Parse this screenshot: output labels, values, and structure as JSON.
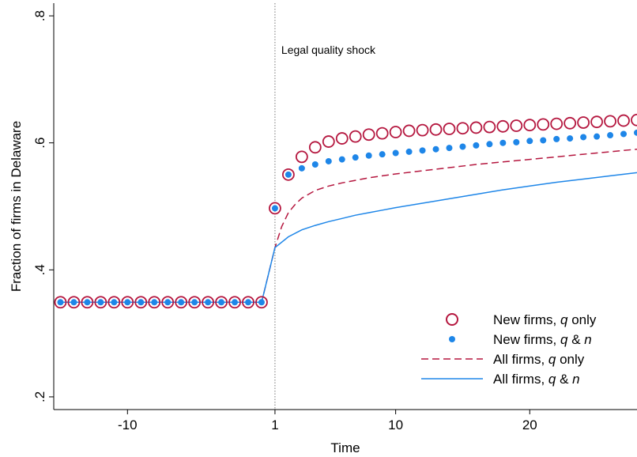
{
  "chart_data": {
    "type": "scatter",
    "xlabel": "Time",
    "ylabel": "Fraction of firms in Delaware",
    "xlim": [
      -15.5,
      28
    ],
    "ylim": [
      0.18,
      0.82
    ],
    "x_ticks": [
      -10,
      1,
      10,
      20
    ],
    "x_tick_labels": [
      "-10",
      "1",
      "10",
      "20"
    ],
    "y_ticks": [
      0.2,
      0.4,
      0.6,
      0.8
    ],
    "y_tick_labels": [
      ".2",
      ".4",
      ".6",
      ".8"
    ],
    "grid": false,
    "legend_position": "bottom-right",
    "annotation": {
      "text": "Legal quality shock",
      "x": 1
    },
    "colors": {
      "red": "#b5173f",
      "blue": "#1e86e8",
      "shock_line": "#777777"
    },
    "series": [
      {
        "name_prefix": "New firms, ",
        "name_q": "q",
        "name_suffix": " only",
        "style": "hollow-circle",
        "color": "#b5173f",
        "x": [
          -15,
          -14,
          -13,
          -12,
          -11,
          -10,
          -9,
          -8,
          -7,
          -6,
          -5,
          -4,
          -3,
          -2,
          -1,
          0,
          1,
          2,
          3,
          4,
          5,
          6,
          7,
          8,
          9,
          10,
          11,
          12,
          13,
          14,
          15,
          16,
          17,
          18,
          19,
          20,
          21,
          22,
          23,
          24,
          25,
          26,
          27,
          28
        ],
        "values": [
          0.349,
          0.349,
          0.349,
          0.349,
          0.349,
          0.349,
          0.349,
          0.349,
          0.349,
          0.349,
          0.349,
          0.349,
          0.349,
          0.349,
          0.349,
          0.349,
          0.497,
          0.55,
          0.578,
          0.593,
          0.602,
          0.607,
          0.61,
          0.613,
          0.615,
          0.617,
          0.619,
          0.62,
          0.621,
          0.622,
          0.623,
          0.624,
          0.625,
          0.626,
          0.627,
          0.628,
          0.629,
          0.63,
          0.631,
          0.632,
          0.633,
          0.634,
          0.635,
          0.636
        ]
      },
      {
        "name_prefix": "New firms, ",
        "name_q": "q",
        "name_mid": " & ",
        "name_n": "n",
        "style": "dot",
        "color": "#1e86e8",
        "x": [
          -15,
          -14,
          -13,
          -12,
          -11,
          -10,
          -9,
          -8,
          -7,
          -6,
          -5,
          -4,
          -3,
          -2,
          -1,
          0,
          1,
          2,
          3,
          4,
          5,
          6,
          7,
          8,
          9,
          10,
          11,
          12,
          13,
          14,
          15,
          16,
          17,
          18,
          19,
          20,
          21,
          22,
          23,
          24,
          25,
          26,
          27,
          28
        ],
        "values": [
          0.349,
          0.349,
          0.349,
          0.349,
          0.349,
          0.349,
          0.349,
          0.349,
          0.349,
          0.349,
          0.349,
          0.349,
          0.349,
          0.349,
          0.349,
          0.349,
          0.497,
          0.55,
          0.56,
          0.566,
          0.571,
          0.574,
          0.577,
          0.58,
          0.582,
          0.584,
          0.586,
          0.588,
          0.59,
          0.592,
          0.594,
          0.596,
          0.598,
          0.6,
          0.601,
          0.603,
          0.604,
          0.606,
          0.607,
          0.609,
          0.61,
          0.612,
          0.614,
          0.616
        ]
      },
      {
        "name_prefix": "All firms, ",
        "name_q": "q",
        "name_suffix": " only",
        "style": "dashed-line",
        "color": "#b5173f",
        "x": [
          -15,
          -14,
          -13,
          -12,
          -11,
          -10,
          -9,
          -8,
          -7,
          -6,
          -5,
          -4,
          -3,
          -2,
          -1,
          0,
          1,
          1.5,
          2,
          2.5,
          3,
          4,
          5,
          6,
          7,
          8,
          9,
          10,
          12,
          14,
          16,
          18,
          20,
          22,
          24,
          26,
          28
        ],
        "values": [
          0.349,
          0.349,
          0.349,
          0.349,
          0.349,
          0.349,
          0.349,
          0.349,
          0.349,
          0.349,
          0.349,
          0.349,
          0.349,
          0.349,
          0.349,
          0.349,
          0.435,
          0.468,
          0.49,
          0.503,
          0.513,
          0.525,
          0.532,
          0.537,
          0.541,
          0.545,
          0.548,
          0.551,
          0.556,
          0.561,
          0.566,
          0.57,
          0.574,
          0.578,
          0.582,
          0.586,
          0.59
        ]
      },
      {
        "name_prefix": "All firms, ",
        "name_q": "q",
        "name_mid": " & ",
        "name_n": "n",
        "style": "solid-line",
        "color": "#1e86e8",
        "x": [
          -15,
          -14,
          -13,
          -12,
          -11,
          -10,
          -9,
          -8,
          -7,
          -6,
          -5,
          -4,
          -3,
          -2,
          -1,
          0,
          1,
          2,
          3,
          4,
          5,
          6,
          7,
          8,
          9,
          10,
          12,
          14,
          16,
          18,
          20,
          22,
          24,
          26,
          28
        ],
        "values": [
          0.349,
          0.349,
          0.349,
          0.349,
          0.349,
          0.349,
          0.349,
          0.349,
          0.349,
          0.349,
          0.349,
          0.349,
          0.349,
          0.349,
          0.349,
          0.349,
          0.435,
          0.452,
          0.463,
          0.47,
          0.476,
          0.481,
          0.486,
          0.49,
          0.494,
          0.498,
          0.505,
          0.512,
          0.519,
          0.526,
          0.532,
          0.538,
          0.543,
          0.548,
          0.553
        ]
      }
    ]
  }
}
